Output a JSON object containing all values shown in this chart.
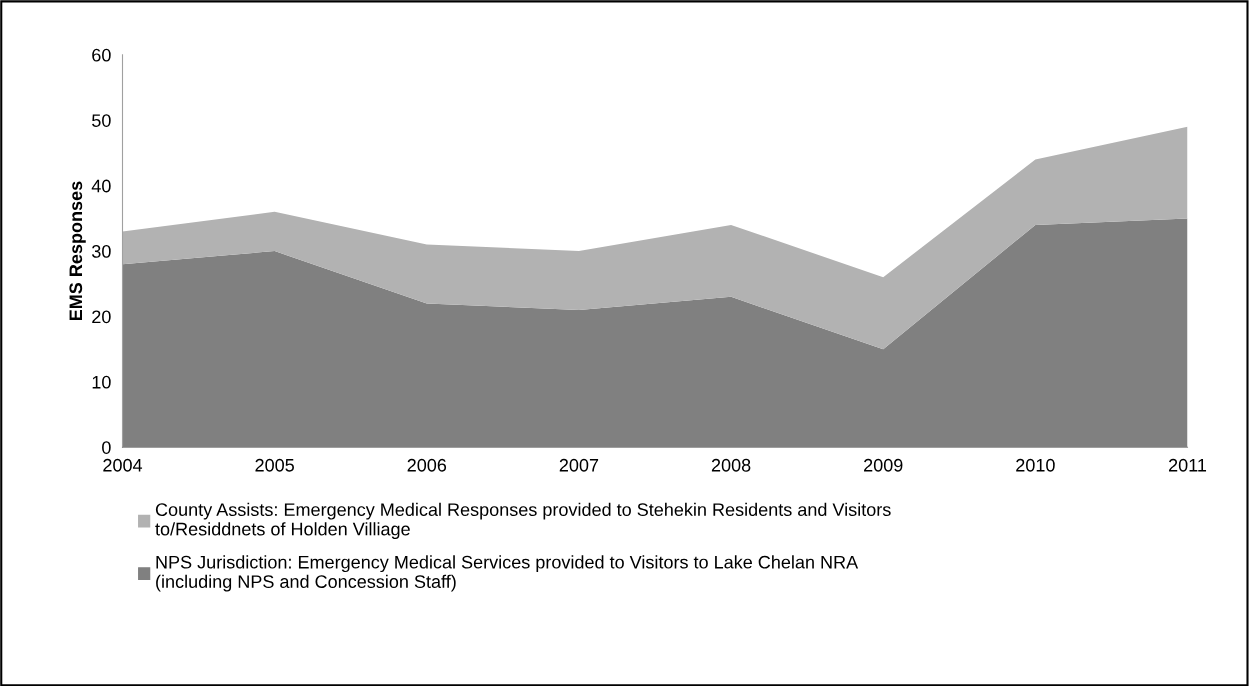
{
  "chart_data": {
    "type": "area",
    "stacked": true,
    "ylabel": "EMS Responses",
    "categories": [
      "2004",
      "2005",
      "2006",
      "2007",
      "2008",
      "2009",
      "2010",
      "2011"
    ],
    "series": [
      {
        "name": "NPS Jurisdiction: Emergency Medical Services provided to Visitors to Lake Chelan NRA\n(including NPS and Concession Staff)",
        "color": "#808080",
        "values": [
          28,
          30,
          22,
          21,
          23,
          15,
          34,
          35
        ]
      },
      {
        "name": "County Assists: Emergency Medical Responses provided to Stehekin Residents and Visitors\nto/Residdnets of Holden Villiage",
        "color": "#b2b2b2",
        "values": [
          5,
          6,
          9,
          9,
          11,
          11,
          10,
          14
        ]
      }
    ],
    "ylim": [
      0,
      60
    ],
    "yticks": [
      0,
      10,
      20,
      30,
      40,
      50,
      60
    ],
    "grid": false,
    "legend": "bottom"
  }
}
